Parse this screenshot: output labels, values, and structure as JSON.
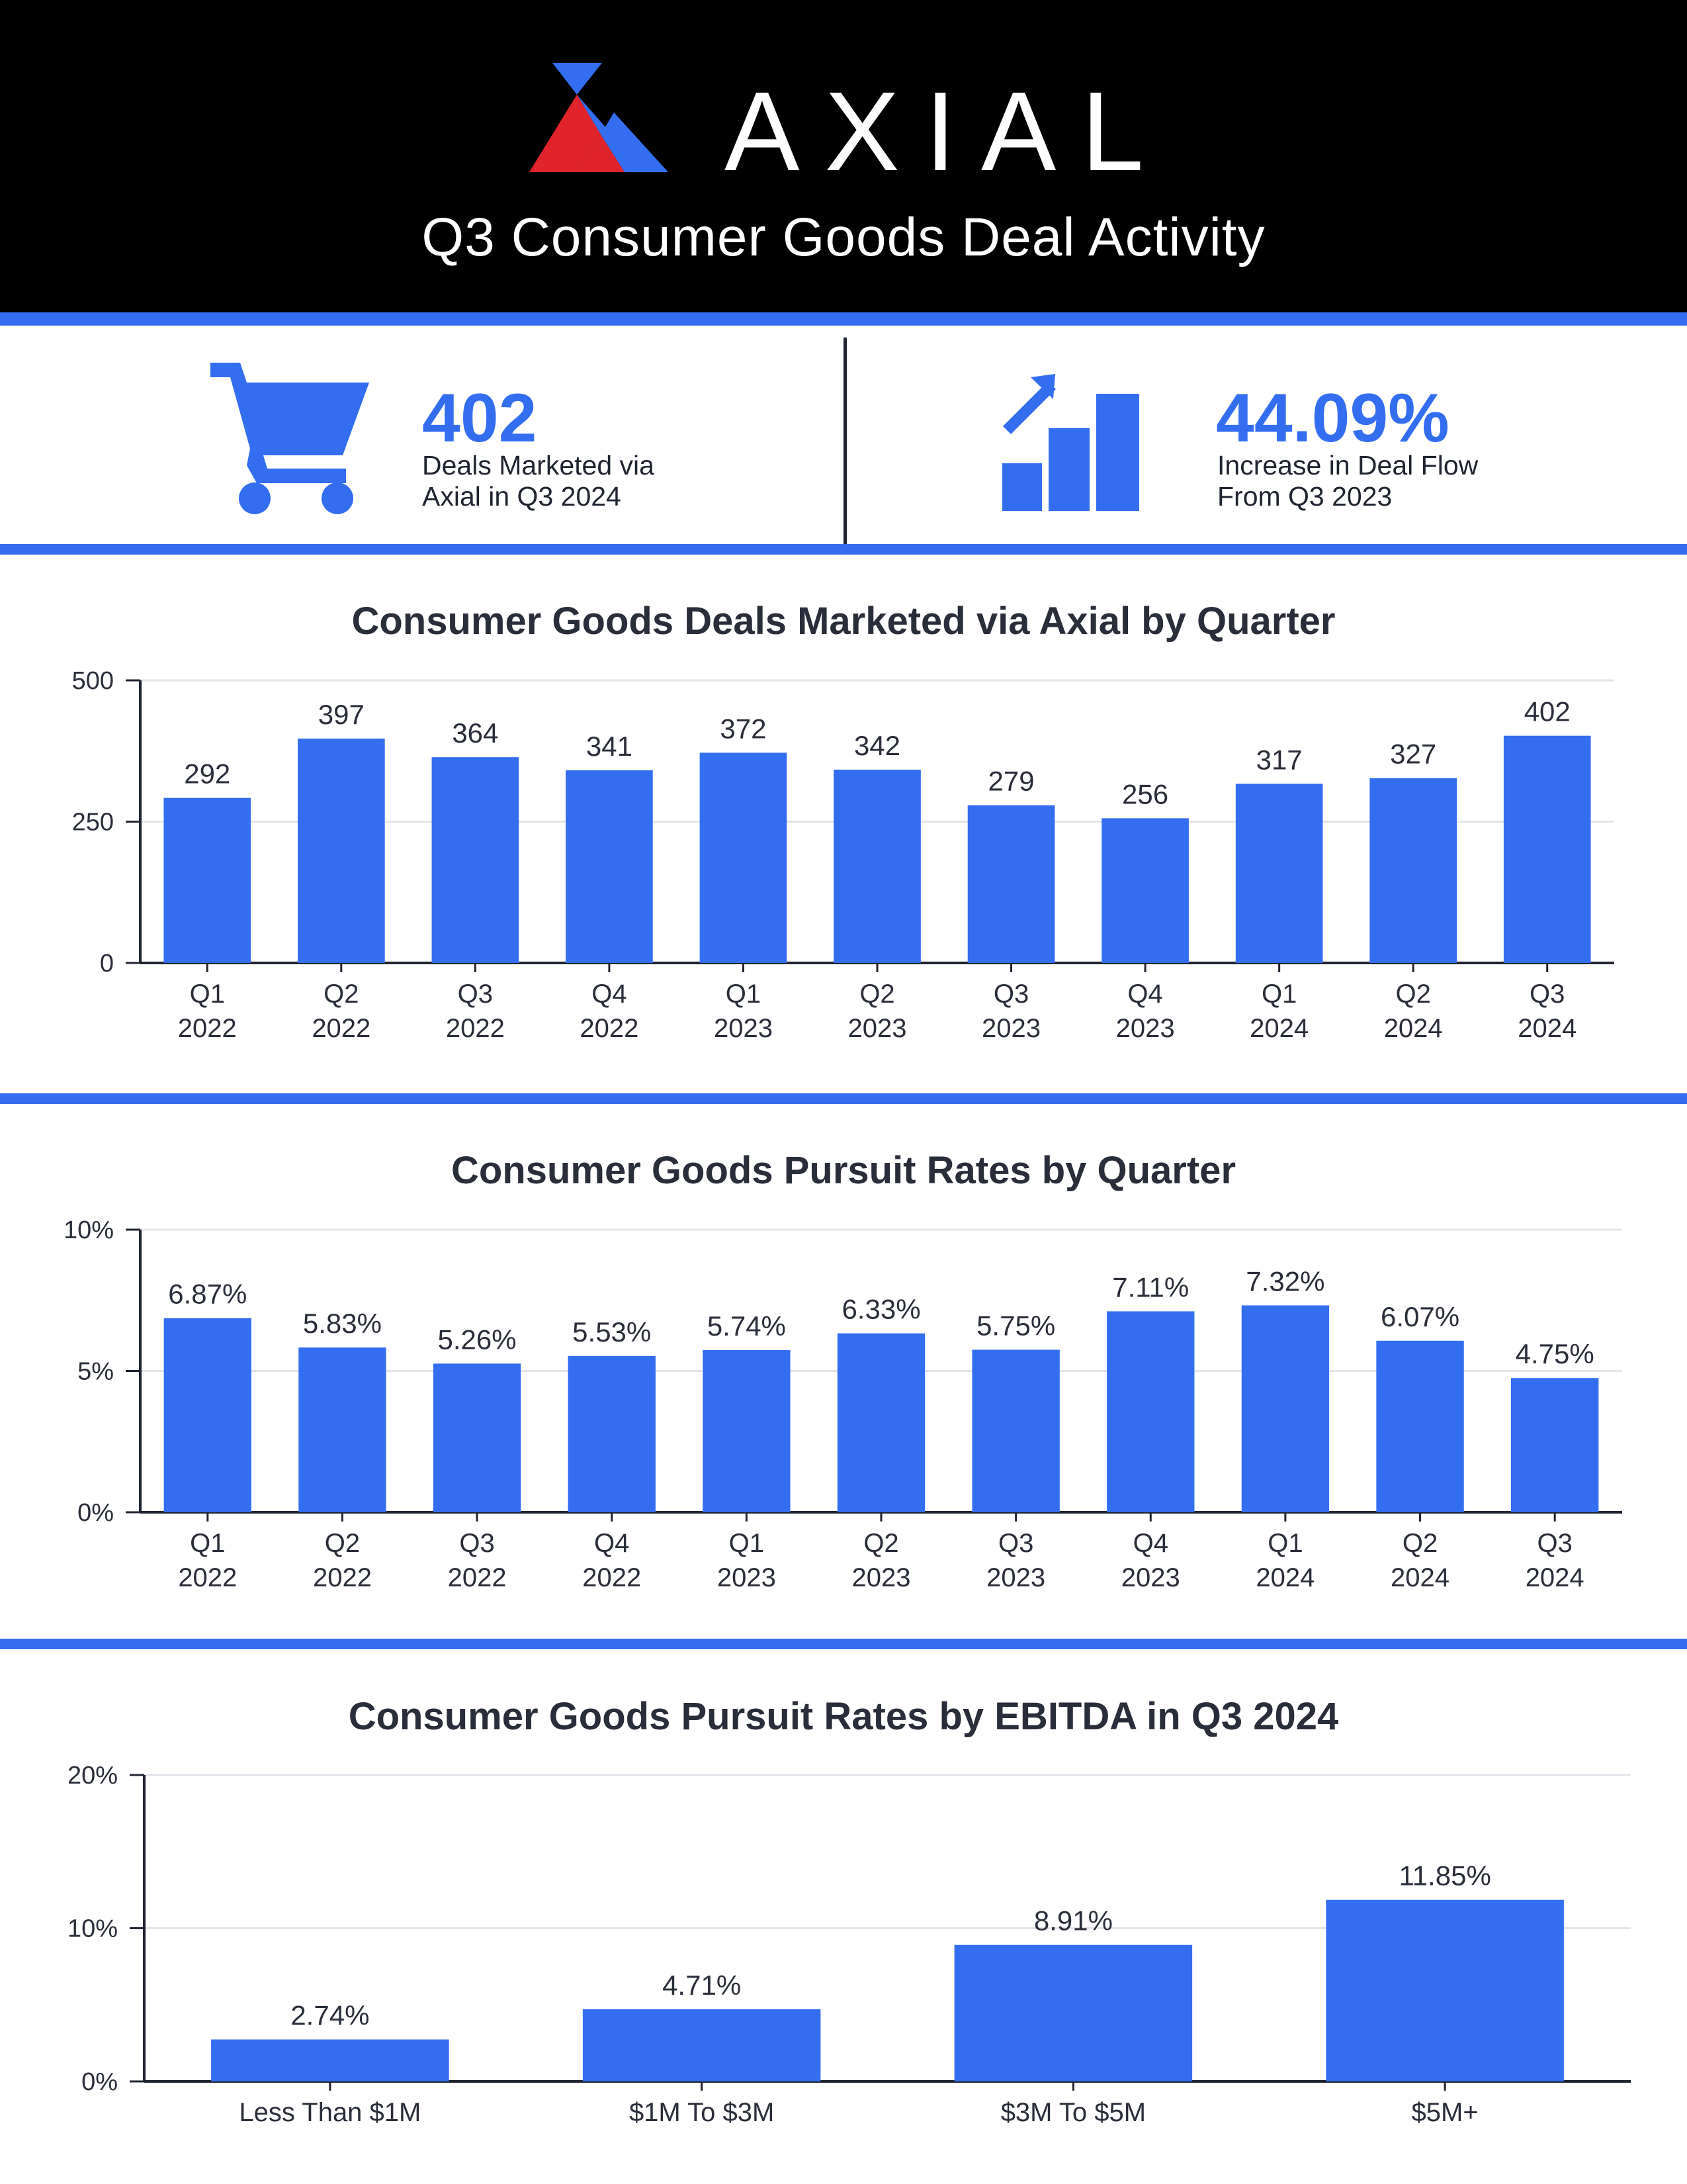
{
  "brand": {
    "name": "AXIAL",
    "header_title": "Q3 Consumer Goods Deal Activity",
    "colors": {
      "accent": "#346ef0",
      "logo_red": "#e0242b",
      "logo_blue": "#346ef0",
      "header_bg": "#000000"
    }
  },
  "stats": [
    {
      "icon": "shopping-cart-icon",
      "value": "402",
      "line1": "Deals Marketed via",
      "line2": "Axial in Q3 2024"
    },
    {
      "icon": "growth-chart-icon",
      "value": "44.09%",
      "line1": "Increase in Deal Flow",
      "line2": "From Q3 2023"
    }
  ],
  "chart_data": [
    {
      "type": "bar",
      "title": "Consumer Goods Deals Marketed via Axial by Quarter",
      "categories": [
        [
          "Q1",
          "2022"
        ],
        [
          "Q2",
          "2022"
        ],
        [
          "Q3",
          "2022"
        ],
        [
          "Q4",
          "2022"
        ],
        [
          "Q1",
          "2023"
        ],
        [
          "Q2",
          "2023"
        ],
        [
          "Q3",
          "2023"
        ],
        [
          "Q4",
          "2023"
        ],
        [
          "Q1",
          "2024"
        ],
        [
          "Q2",
          "2024"
        ],
        [
          "Q3",
          "2024"
        ]
      ],
      "values": [
        292,
        397,
        364,
        341,
        372,
        342,
        279,
        256,
        317,
        327,
        402
      ],
      "labels": [
        "292",
        "397",
        "364",
        "341",
        "372",
        "342",
        "279",
        "256",
        "317",
        "327",
        "402"
      ],
      "ylim": [
        0,
        500
      ],
      "yticks": [
        0,
        250,
        500
      ],
      "ytick_labels": [
        "0",
        "250",
        "500"
      ],
      "grid": true
    },
    {
      "type": "bar",
      "title": "Consumer Goods Pursuit Rates by Quarter",
      "categories": [
        [
          "Q1",
          "2022"
        ],
        [
          "Q2",
          "2022"
        ],
        [
          "Q3",
          "2022"
        ],
        [
          "Q4",
          "2022"
        ],
        [
          "Q1",
          "2023"
        ],
        [
          "Q2",
          "2023"
        ],
        [
          "Q3",
          "2023"
        ],
        [
          "Q4",
          "2023"
        ],
        [
          "Q1",
          "2024"
        ],
        [
          "Q2",
          "2024"
        ],
        [
          "Q3",
          "2024"
        ]
      ],
      "values": [
        6.87,
        5.83,
        5.26,
        5.53,
        5.74,
        6.33,
        5.75,
        7.11,
        7.32,
        6.07,
        4.75
      ],
      "labels": [
        "6.87%",
        "5.83%",
        "5.26%",
        "5.53%",
        "5.74%",
        "6.33%",
        "5.75%",
        "7.11%",
        "7.32%",
        "6.07%",
        "4.75%"
      ],
      "ylim": [
        0,
        10
      ],
      "yticks": [
        0,
        5,
        10
      ],
      "ytick_labels": [
        "0%",
        "5%",
        "10%"
      ],
      "grid": true
    },
    {
      "type": "bar",
      "title": "Consumer Goods Pursuit Rates by EBITDA in Q3 2024",
      "categories": [
        [
          "Less Than $1M"
        ],
        [
          "$1M To $3M"
        ],
        [
          "$3M To $5M"
        ],
        [
          "$5M+"
        ]
      ],
      "values": [
        2.74,
        4.71,
        8.91,
        11.85
      ],
      "labels": [
        "2.74%",
        "4.71%",
        "8.91%",
        "11.85%"
      ],
      "ylim": [
        0,
        20
      ],
      "yticks": [
        0,
        10,
        20
      ],
      "ytick_labels": [
        "0%",
        "10%",
        "20%"
      ],
      "grid": true
    }
  ]
}
